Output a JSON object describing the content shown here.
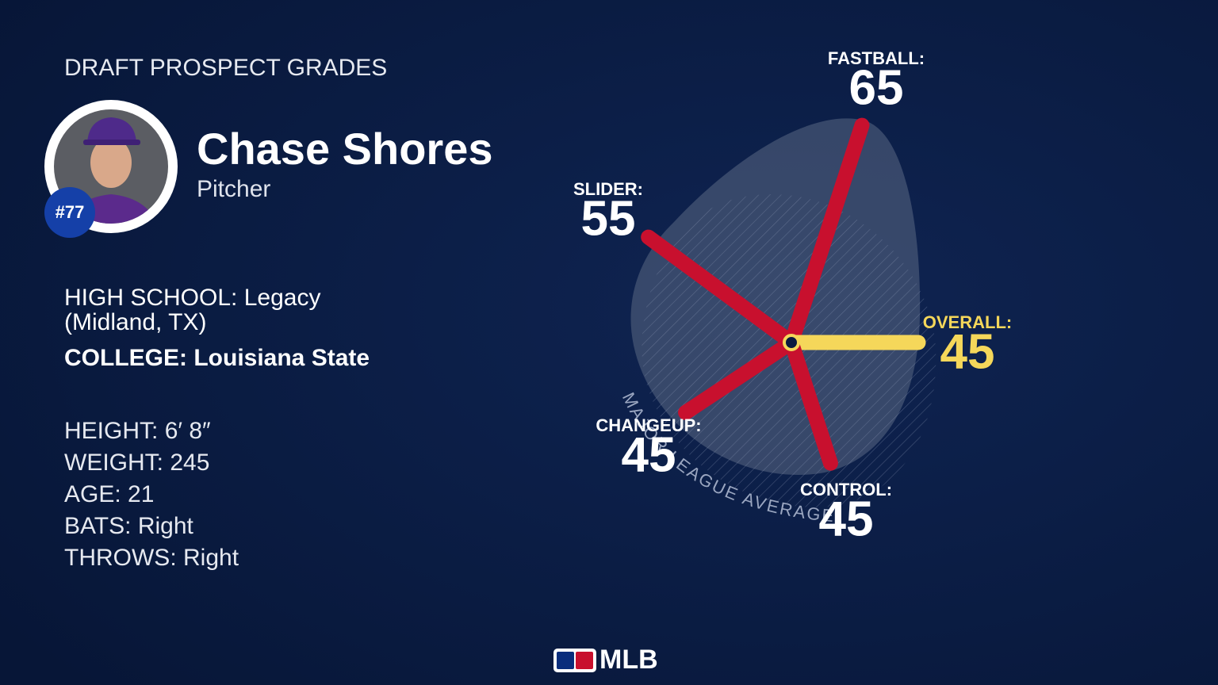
{
  "header": {
    "title": "DRAFT PROSPECT GRADES"
  },
  "player": {
    "name": "Chase Shores",
    "position": "Pitcher",
    "number": "#77"
  },
  "bio": {
    "high_school": {
      "label": "HIGH SCHOOL:",
      "value_line1": "Legacy",
      "value_line2": "(Midland, TX)"
    },
    "college": {
      "label": "COLLEGE:",
      "value": "Louisiana State"
    },
    "stats": [
      {
        "label": "HEIGHT:",
        "value": "6′ 8″"
      },
      {
        "label": "WEIGHT:",
        "value": 245
      },
      {
        "label": "AGE:",
        "value": 21
      },
      {
        "label": "BATS:",
        "value": "Right"
      },
      {
        "label": "THROWS:",
        "value": "Right"
      }
    ]
  },
  "footer": {
    "logo": "MLB"
  },
  "chart_data": {
    "type": "radial",
    "categories": [
      "FASTBALL:",
      "SLIDER:",
      "OVERALL:",
      "CHANGEUP:",
      "CONTROL:"
    ],
    "values": [
      65,
      55,
      45,
      45,
      45
    ],
    "colors": [
      "#c8102e",
      "#c8102e",
      "#f5d75a",
      "#c8102e",
      "#c8102e"
    ],
    "rlim": [
      20,
      80
    ],
    "annotation": "MAJOR LEAGUE AVERAGE"
  }
}
